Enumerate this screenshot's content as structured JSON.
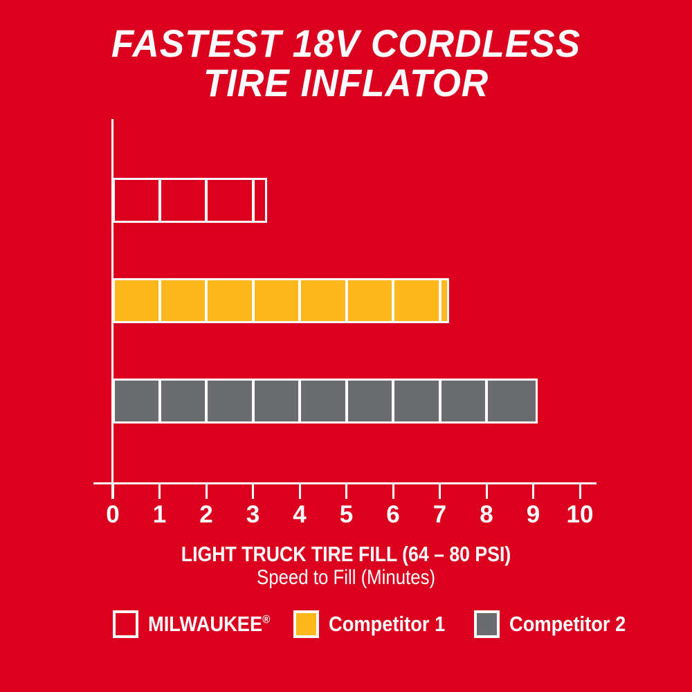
{
  "title": {
    "line1": "FASTEST 18V CORDLESS",
    "line2": "TIRE INFLATOR"
  },
  "colors": {
    "background_red": "#DB001E",
    "white": "#FFFFFF",
    "competitor1_yellow": "#FDB81E",
    "competitor2_gray": "#6A6C70"
  },
  "chart_data": {
    "type": "bar",
    "orientation": "horizontal",
    "title": "FASTEST 18V CORDLESS TIRE INFLATOR",
    "xlabel": "LIGHT TRUCK TIRE FILL (64 – 80 PSI)",
    "xlabel_sub": "Speed to Fill (Minutes)",
    "xlim": [
      0,
      10
    ],
    "xticks": [
      0,
      1,
      2,
      3,
      4,
      5,
      6,
      7,
      8,
      9,
      10
    ],
    "grid": false,
    "legend_position": "bottom",
    "segmented_bars": true,
    "categories": [
      "MILWAUKEE",
      "Competitor 1",
      "Competitor 2"
    ],
    "series": [
      {
        "name": "MILWAUKEE",
        "value": 3.3,
        "fill": "none",
        "outline": "#FFFFFF"
      },
      {
        "name": "Competitor 1",
        "value": 7.2,
        "fill": "#FDB81E",
        "outline": "#FFFFFF"
      },
      {
        "name": "Competitor 2",
        "value": 9.1,
        "fill": "#6A6C70",
        "outline": "#FFFFFF"
      }
    ]
  },
  "legend": {
    "items": [
      {
        "label": "MILWAUKEE",
        "sup": "®",
        "swatch_fill": "none"
      },
      {
        "label": "Competitor 1",
        "swatch_fill": "#FDB81E"
      },
      {
        "label": "Competitor 2",
        "swatch_fill": "#6A6C70"
      }
    ]
  }
}
